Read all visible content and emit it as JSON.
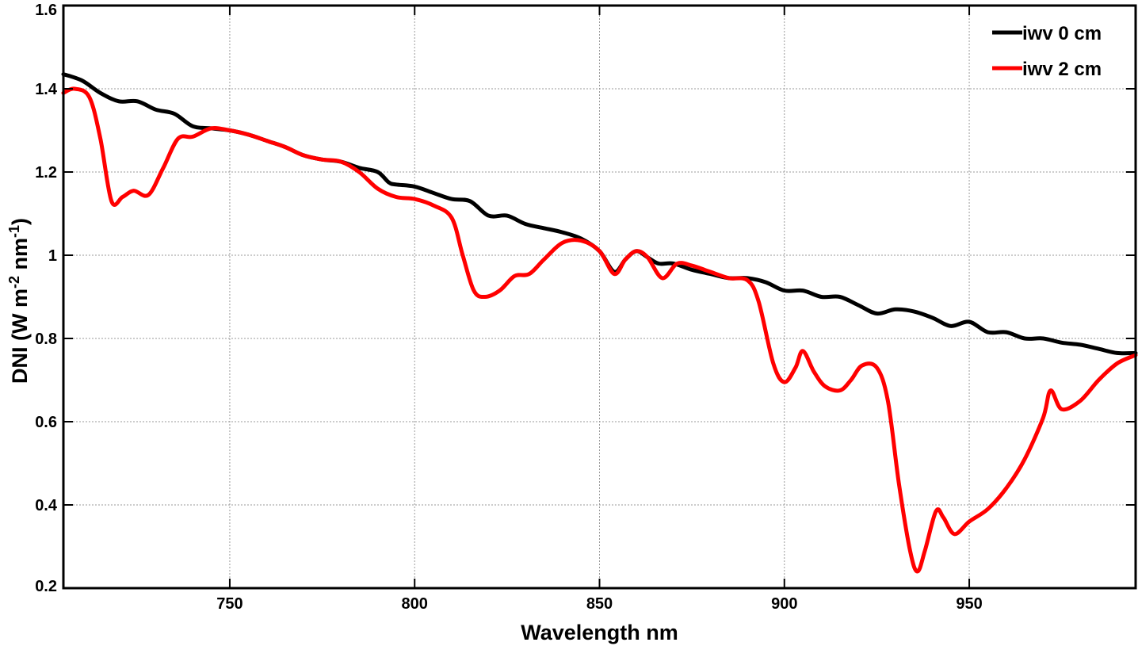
{
  "chart_data": {
    "type": "line",
    "xlabel": "Wavelength nm",
    "ylabel": {
      "base": "DNI (W m",
      "sup1": "-2",
      "mid": " nm",
      "sup2": "-1",
      "end": ")"
    },
    "xlim": [
      705,
      995
    ],
    "ylim": [
      0.2,
      1.6
    ],
    "xticks": [
      750,
      800,
      850,
      900,
      950
    ],
    "yticks": [
      0.2,
      0.4,
      0.6,
      0.8,
      1.0,
      1.2,
      1.4,
      1.6
    ],
    "ytick_labels": [
      "0.2",
      "0.4",
      "0.6",
      "0.8",
      "1",
      "1.2",
      "1.4",
      "1.6"
    ],
    "grid": true,
    "legend_position": "top-right",
    "series": [
      {
        "name": "iwv 0 cm",
        "color": "#000000",
        "x": [
          705,
          710,
          715,
          720,
          725,
          730,
          735,
          740,
          745,
          750,
          755,
          760,
          765,
          770,
          775,
          780,
          785,
          790,
          793,
          795,
          800,
          805,
          810,
          815,
          820,
          825,
          830,
          835,
          840,
          845,
          850,
          854,
          857,
          860,
          863,
          866,
          870,
          875,
          880,
          885,
          890,
          895,
          900,
          905,
          910,
          915,
          920,
          925,
          930,
          935,
          940,
          945,
          950,
          955,
          960,
          965,
          970,
          975,
          980,
          985,
          990,
          995
        ],
        "y": [
          1.435,
          1.42,
          1.39,
          1.37,
          1.37,
          1.35,
          1.34,
          1.31,
          1.305,
          1.3,
          1.29,
          1.275,
          1.26,
          1.24,
          1.23,
          1.225,
          1.21,
          1.2,
          1.175,
          1.17,
          1.165,
          1.15,
          1.135,
          1.13,
          1.095,
          1.095,
          1.075,
          1.065,
          1.055,
          1.04,
          1.01,
          0.96,
          0.99,
          1.01,
          0.995,
          0.98,
          0.98,
          0.965,
          0.955,
          0.945,
          0.945,
          0.935,
          0.915,
          0.915,
          0.9,
          0.9,
          0.88,
          0.86,
          0.87,
          0.865,
          0.85,
          0.83,
          0.84,
          0.815,
          0.815,
          0.8,
          0.8,
          0.79,
          0.785,
          0.775,
          0.765,
          0.765
        ]
      },
      {
        "name": "iwv 2 cm",
        "color": "#ff0000",
        "x": [
          705,
          708,
          712,
          715,
          718,
          721,
          724,
          728,
          732,
          736,
          740,
          745,
          750,
          755,
          760,
          765,
          770,
          775,
          780,
          785,
          790,
          795,
          800,
          805,
          810,
          813,
          816,
          819,
          823,
          827,
          831,
          835,
          840,
          845,
          850,
          854,
          857,
          860,
          863,
          867,
          871,
          875,
          880,
          885,
          890,
          893,
          897,
          900,
          903,
          905,
          908,
          911,
          915,
          918,
          921,
          925,
          928,
          931,
          934,
          936,
          938,
          941,
          943,
          946,
          950,
          955,
          960,
          965,
          970,
          972,
          975,
          980,
          985,
          990,
          995
        ],
        "y": [
          1.39,
          1.4,
          1.38,
          1.28,
          1.13,
          1.14,
          1.155,
          1.145,
          1.21,
          1.28,
          1.285,
          1.305,
          1.3,
          1.29,
          1.275,
          1.26,
          1.24,
          1.23,
          1.225,
          1.2,
          1.16,
          1.14,
          1.135,
          1.12,
          1.09,
          1.0,
          0.915,
          0.9,
          0.915,
          0.95,
          0.955,
          0.99,
          1.03,
          1.035,
          1.01,
          0.955,
          0.99,
          1.01,
          0.995,
          0.945,
          0.98,
          0.975,
          0.96,
          0.945,
          0.94,
          0.89,
          0.74,
          0.695,
          0.73,
          0.77,
          0.72,
          0.685,
          0.675,
          0.7,
          0.735,
          0.73,
          0.65,
          0.45,
          0.29,
          0.24,
          0.29,
          0.385,
          0.37,
          0.33,
          0.36,
          0.39,
          0.44,
          0.51,
          0.61,
          0.675,
          0.63,
          0.65,
          0.7,
          0.74,
          0.76
        ]
      }
    ]
  }
}
